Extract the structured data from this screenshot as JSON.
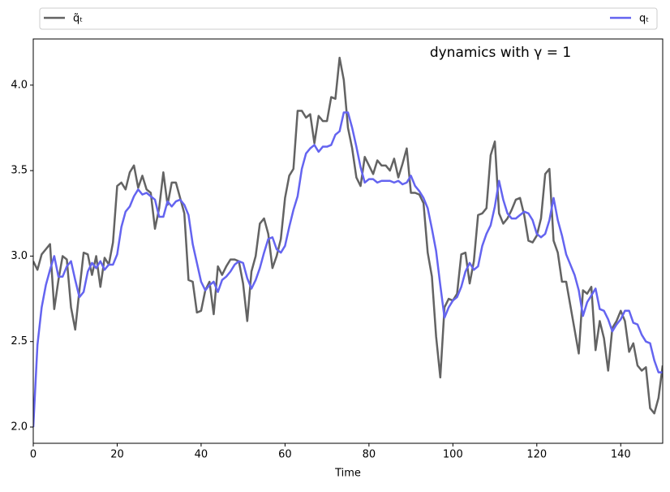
{
  "chart_data": {
    "type": "line",
    "title": "dynamics with γ = 1",
    "xlabel": "Time",
    "legend": "above",
    "xlim": [
      0,
      150
    ],
    "ylim": [
      1.905,
      4.27
    ],
    "xticks": [
      0,
      20,
      40,
      60,
      80,
      100,
      120,
      140
    ],
    "yticks": [
      {
        "value": 2,
        "label": "2.0"
      },
      2.5,
      {
        "value": 3,
        "label": "3.0"
      },
      3.5,
      {
        "value": 4,
        "label": "4.0"
      }
    ],
    "x": [
      0,
      1,
      2,
      3,
      4,
      5,
      6,
      7,
      8,
      9,
      10,
      11,
      12,
      13,
      14,
      15,
      16,
      17,
      18,
      19,
      20,
      21,
      22,
      23,
      24,
      25,
      26,
      27,
      28,
      29,
      30,
      31,
      32,
      33,
      34,
      35,
      36,
      37,
      38,
      39,
      40,
      41,
      42,
      43,
      44,
      45,
      46,
      47,
      48,
      49,
      50,
      51,
      52,
      53,
      54,
      55,
      56,
      57,
      58,
      59,
      60,
      61,
      62,
      63,
      64,
      65,
      66,
      67,
      68,
      69,
      70,
      71,
      72,
      73,
      74,
      75,
      76,
      77,
      78,
      79,
      80,
      81,
      82,
      83,
      84,
      85,
      86,
      87,
      88,
      89,
      90,
      91,
      92,
      93,
      94,
      95,
      96,
      97,
      98,
      99,
      100,
      101,
      102,
      103,
      104,
      105,
      106,
      107,
      108,
      109,
      110,
      111,
      112,
      113,
      114,
      115,
      116,
      117,
      118,
      119,
      120,
      121,
      122,
      123,
      124,
      125,
      126,
      127,
      128,
      129,
      130,
      131,
      132,
      133,
      134,
      135,
      136,
      137,
      138,
      139,
      140,
      141,
      142,
      143,
      144,
      145,
      146,
      147,
      148,
      149,
      150
    ],
    "series": [
      {
        "name": "q̃ₜ",
        "color": "#636363",
        "values": [
          2.97,
          2.92,
          3.01,
          3.04,
          3.07,
          2.69,
          2.86,
          3.0,
          2.98,
          2.7,
          2.57,
          2.8,
          3.02,
          3.01,
          2.89,
          3.0,
          2.82,
          2.99,
          2.95,
          3.08,
          3.41,
          3.43,
          3.39,
          3.49,
          3.53,
          3.4,
          3.47,
          3.39,
          3.37,
          3.16,
          3.28,
          3.49,
          3.3,
          3.43,
          3.43,
          3.34,
          3.25,
          2.86,
          2.85,
          2.67,
          2.68,
          2.8,
          2.85,
          2.66,
          2.94,
          2.89,
          2.94,
          2.98,
          2.98,
          2.97,
          2.84,
          2.62,
          2.91,
          3.0,
          3.19,
          3.22,
          3.13,
          2.93,
          3.0,
          3.1,
          3.34,
          3.47,
          3.51,
          3.85,
          3.85,
          3.81,
          3.83,
          3.66,
          3.82,
          3.79,
          3.79,
          3.93,
          3.92,
          4.16,
          4.03,
          3.75,
          3.63,
          3.46,
          3.41,
          3.58,
          3.53,
          3.48,
          3.56,
          3.53,
          3.53,
          3.5,
          3.57,
          3.46,
          3.54,
          3.63,
          3.37,
          3.37,
          3.36,
          3.31,
          3.02,
          2.88,
          2.53,
          2.29,
          2.7,
          2.75,
          2.74,
          2.78,
          3.01,
          3.02,
          2.84,
          2.97,
          3.24,
          3.25,
          3.28,
          3.59,
          3.67,
          3.25,
          3.19,
          3.22,
          3.27,
          3.33,
          3.34,
          3.24,
          3.09,
          3.08,
          3.12,
          3.22,
          3.48,
          3.51,
          3.09,
          3.02,
          2.85,
          2.85,
          2.71,
          2.57,
          2.43,
          2.8,
          2.78,
          2.82,
          2.45,
          2.62,
          2.52,
          2.33,
          2.58,
          2.62,
          2.68,
          2.62,
          2.44,
          2.49,
          2.36,
          2.33,
          2.35,
          2.11,
          2.08,
          2.17,
          2.36
        ]
      },
      {
        "name": "qₜ",
        "color": "#6464f0",
        "values": [
          2.0,
          2.48,
          2.7,
          2.83,
          2.92,
          3.0,
          2.88,
          2.88,
          2.94,
          2.97,
          2.86,
          2.76,
          2.79,
          2.91,
          2.96,
          2.93,
          2.97,
          2.92,
          2.95,
          2.95,
          3.01,
          3.17,
          3.26,
          3.29,
          3.35,
          3.39,
          3.36,
          3.37,
          3.35,
          3.33,
          3.23,
          3.23,
          3.32,
          3.29,
          3.32,
          3.33,
          3.3,
          3.24,
          3.07,
          2.96,
          2.85,
          2.8,
          2.83,
          2.85,
          2.79,
          2.86,
          2.88,
          2.91,
          2.95,
          2.97,
          2.96,
          2.87,
          2.81,
          2.86,
          2.93,
          3.02,
          3.1,
          3.11,
          3.04,
          3.02,
          3.06,
          3.17,
          3.27,
          3.35,
          3.51,
          3.6,
          3.63,
          3.65,
          3.61,
          3.64,
          3.64,
          3.65,
          3.71,
          3.73,
          3.84,
          3.84,
          3.75,
          3.64,
          3.52,
          3.43,
          3.45,
          3.45,
          3.43,
          3.44,
          3.44,
          3.44,
          3.43,
          3.44,
          3.42,
          3.43,
          3.47,
          3.41,
          3.38,
          3.34,
          3.28,
          3.16,
          3.03,
          2.83,
          2.64,
          2.7,
          2.74,
          2.76,
          2.82,
          2.91,
          2.96,
          2.92,
          2.94,
          3.06,
          3.13,
          3.18,
          3.29,
          3.44,
          3.33,
          3.25,
          3.22,
          3.22,
          3.24,
          3.26,
          3.25,
          3.21,
          3.13,
          3.11,
          3.13,
          3.21,
          3.34,
          3.21,
          3.12,
          3.01,
          2.95,
          2.89,
          2.8,
          2.65,
          2.73,
          2.77,
          2.81,
          2.69,
          2.68,
          2.63,
          2.56,
          2.6,
          2.63,
          2.68,
          2.68,
          2.61,
          2.6,
          2.54,
          2.5,
          2.49,
          2.39,
          2.32,
          2.32
        ]
      }
    ]
  }
}
